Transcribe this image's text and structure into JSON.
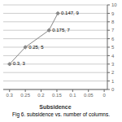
{
  "chart_data": {
    "type": "line",
    "x": [
      0.3,
      0.25,
      0.175,
      0.147
    ],
    "values": [
      3,
      5,
      7,
      9
    ],
    "annotations": [
      "0.3, 3",
      "0.25, 5",
      "0.175, 7",
      "0.147, 9"
    ],
    "xlabel": "Subsidence",
    "caption": "Fig 6. subsidence vs. number of columns.",
    "xlim": [
      0.32,
      -0.01
    ],
    "xticks": [
      0.3,
      0.25,
      0.2,
      0.15,
      0.1,
      0.05,
      0
    ],
    "ylim": [
      0,
      10
    ],
    "yticks": [
      0,
      1,
      2,
      3,
      4,
      5,
      6,
      7,
      8,
      9,
      10
    ],
    "grid": true,
    "color": "#888888",
    "marker": "diamond"
  }
}
